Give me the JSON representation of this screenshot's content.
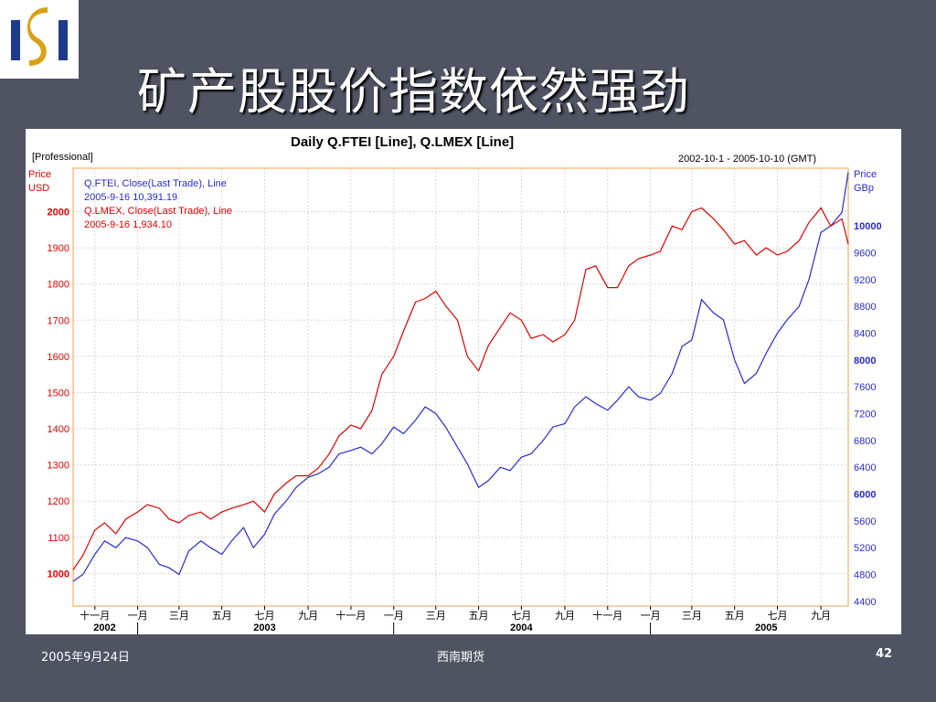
{
  "slide": {
    "title": "矿产股股价指数依然强劲",
    "footer_date": "2005年9月24日",
    "footer_company": "西南期货",
    "page_number": "42",
    "logo_icon": "ss-company-logo-icon",
    "logo_colors": {
      "blue": "#1d3b8c",
      "gold": "#d9a216"
    }
  },
  "chart_data": {
    "type": "line",
    "title": "Daily Q.FTEI [Line], Q.LMEX [Line]",
    "top_left_label": "[Professional]",
    "date_range": "2002-10-1 - 2005-10-10 (GMT)",
    "left_axis": {
      "label_line1": "Price",
      "label_line2": "USD",
      "ylim": [
        910,
        2120
      ],
      "ticks": [
        "1000",
        "1100",
        "1200",
        "1300",
        "1400",
        "1500",
        "1600",
        "1700",
        "1800",
        "1900",
        "2000"
      ],
      "bold_ticks": [
        "1000",
        "2000"
      ],
      "color": "#e00000"
    },
    "right_axis": {
      "label_line1": "Price",
      "label_line2": "GBp",
      "ylim": [
        4330,
        10860
      ],
      "ticks": [
        "4400",
        "4800",
        "5200",
        "5600",
        "6000",
        "6400",
        "6800",
        "7200",
        "7600",
        "8000",
        "8400",
        "8800",
        "9200",
        "9600",
        "10000"
      ],
      "bold_ticks": [
        "6000",
        "8000",
        "10000"
      ],
      "color": "#2a2ad0"
    },
    "x_axis": {
      "month_labels": [
        "十一月",
        "一月",
        "三月",
        "五月",
        "七月",
        "九月",
        "十一月",
        "一月",
        "三月",
        "五月",
        "七月",
        "九月",
        "十一月",
        "一月",
        "三月",
        "五月",
        "七月",
        "九月"
      ],
      "year_labels": [
        "2002",
        "2003",
        "2004",
        "2005"
      ]
    },
    "grid": true,
    "legend_position": "top-left",
    "legend": [
      {
        "line1": "Q.FTEI, Close(Last Trade), Line",
        "line2": "2005-9-16 10,391.19",
        "color": "#2a2ad0"
      },
      {
        "line1": "Q.LMEX, Close(Last Trade), Line",
        "line2": "2005-9-16 1,934.10",
        "color": "#e00000"
      }
    ],
    "series": [
      {
        "name": "Q.FTEI",
        "axis": "right",
        "color": "#2a2ad0",
        "x": [
          "2002-10-01",
          "2002-10-15",
          "2002-11-01",
          "2002-11-15",
          "2002-12-01",
          "2002-12-15",
          "2003-01-01",
          "2003-01-15",
          "2003-02-01",
          "2003-02-15",
          "2003-03-01",
          "2003-03-15",
          "2003-04-01",
          "2003-04-15",
          "2003-05-01",
          "2003-05-15",
          "2003-06-01",
          "2003-06-15",
          "2003-07-01",
          "2003-07-15",
          "2003-08-01",
          "2003-08-15",
          "2003-09-01",
          "2003-09-15",
          "2003-10-01",
          "2003-10-15",
          "2003-11-01",
          "2003-11-15",
          "2003-12-01",
          "2003-12-15",
          "2004-01-01",
          "2004-01-15",
          "2004-02-01",
          "2004-02-15",
          "2004-03-01",
          "2004-03-15",
          "2004-04-01",
          "2004-04-15",
          "2004-05-01",
          "2004-05-15",
          "2004-06-01",
          "2004-06-15",
          "2004-07-01",
          "2004-07-15",
          "2004-08-01",
          "2004-08-15",
          "2004-09-01",
          "2004-09-15",
          "2004-10-01",
          "2004-10-15",
          "2004-11-01",
          "2004-11-15",
          "2004-12-01",
          "2004-12-15",
          "2005-01-01",
          "2005-01-15",
          "2005-02-01",
          "2005-02-15",
          "2005-03-01",
          "2005-03-15",
          "2005-04-01",
          "2005-04-15",
          "2005-05-01",
          "2005-05-15",
          "2005-06-01",
          "2005-06-15",
          "2005-07-01",
          "2005-07-15",
          "2005-08-01",
          "2005-08-15",
          "2005-09-01",
          "2005-09-15",
          "2005-10-01",
          "2005-10-10"
        ],
        "values": [
          4700,
          4800,
          5100,
          5300,
          5200,
          5350,
          5300,
          5200,
          4950,
          4900,
          4800,
          5150,
          5300,
          5200,
          5100,
          5300,
          5500,
          5200,
          5400,
          5700,
          5900,
          6100,
          6250,
          6300,
          6400,
          6600,
          6650,
          6700,
          6600,
          6750,
          7000,
          6900,
          7100,
          7300,
          7200,
          7000,
          6700,
          6450,
          6100,
          6200,
          6400,
          6350,
          6550,
          6600,
          6800,
          7000,
          7050,
          7300,
          7450,
          7350,
          7250,
          7400,
          7600,
          7450,
          7400,
          7500,
          7800,
          8200,
          8300,
          8900,
          8700,
          8600,
          8000,
          7650,
          7800,
          8100,
          8400,
          8600,
          8800,
          9200,
          9900,
          10000,
          10200,
          10800
        ]
      },
      {
        "name": "Q.LMEX",
        "axis": "left",
        "color": "#e00000",
        "x": [
          "2002-10-01",
          "2002-10-15",
          "2002-11-01",
          "2002-11-15",
          "2002-12-01",
          "2002-12-15",
          "2003-01-01",
          "2003-01-15",
          "2003-02-01",
          "2003-02-15",
          "2003-03-01",
          "2003-03-15",
          "2003-04-01",
          "2003-04-15",
          "2003-05-01",
          "2003-05-15",
          "2003-06-01",
          "2003-06-15",
          "2003-07-01",
          "2003-07-15",
          "2003-08-01",
          "2003-08-15",
          "2003-09-01",
          "2003-09-15",
          "2003-10-01",
          "2003-10-15",
          "2003-11-01",
          "2003-11-15",
          "2003-12-01",
          "2003-12-15",
          "2004-01-01",
          "2004-01-15",
          "2004-02-01",
          "2004-02-15",
          "2004-03-01",
          "2004-03-15",
          "2004-04-01",
          "2004-04-15",
          "2004-05-01",
          "2004-05-15",
          "2004-06-01",
          "2004-06-15",
          "2004-07-01",
          "2004-07-15",
          "2004-08-01",
          "2004-08-15",
          "2004-09-01",
          "2004-09-15",
          "2004-10-01",
          "2004-10-15",
          "2004-11-01",
          "2004-11-15",
          "2004-12-01",
          "2004-12-15",
          "2005-01-01",
          "2005-01-15",
          "2005-02-01",
          "2005-02-15",
          "2005-03-01",
          "2005-03-15",
          "2005-04-01",
          "2005-04-15",
          "2005-05-01",
          "2005-05-15",
          "2005-06-01",
          "2005-06-15",
          "2005-07-01",
          "2005-07-15",
          "2005-08-01",
          "2005-08-15",
          "2005-09-01",
          "2005-09-15",
          "2005-10-01",
          "2005-10-10"
        ],
        "values": [
          1010,
          1050,
          1120,
          1140,
          1110,
          1150,
          1170,
          1190,
          1180,
          1150,
          1140,
          1160,
          1170,
          1150,
          1170,
          1180,
          1190,
          1200,
          1170,
          1220,
          1250,
          1270,
          1270,
          1290,
          1330,
          1380,
          1410,
          1400,
          1450,
          1550,
          1600,
          1670,
          1750,
          1760,
          1780,
          1740,
          1700,
          1600,
          1560,
          1630,
          1680,
          1720,
          1700,
          1650,
          1660,
          1640,
          1660,
          1700,
          1840,
          1850,
          1790,
          1790,
          1850,
          1870,
          1880,
          1890,
          1960,
          1950,
          2000,
          2010,
          1980,
          1950,
          1910,
          1920,
          1880,
          1900,
          1880,
          1890,
          1920,
          1970,
          2010,
          1960,
          1980,
          1910
        ]
      }
    ]
  }
}
